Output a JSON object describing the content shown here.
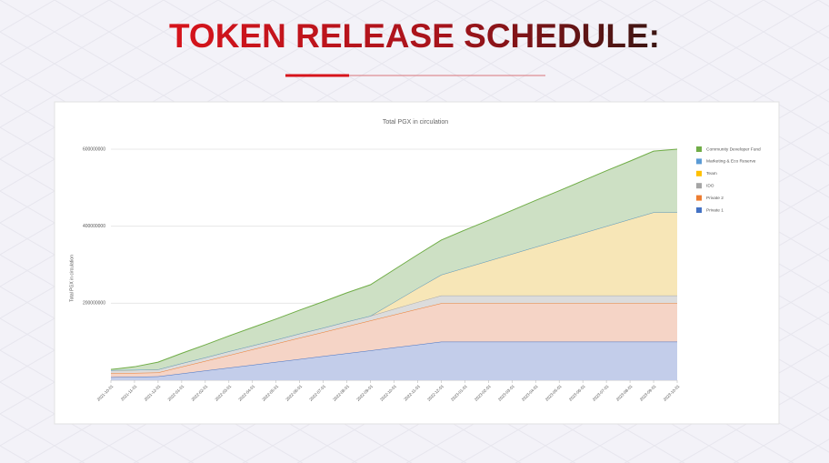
{
  "heading": "TOKEN RELEASE SCHEDULE:",
  "chart_data": {
    "type": "stacked_area",
    "title": "Total PGX in circulation",
    "y_label": "Total PGX in circulation",
    "categories": [
      "2021-10-01",
      "2021-11-01",
      "2021-12-01",
      "2022-01-01",
      "2022-02-01",
      "2022-03-01",
      "2022-04-01",
      "2022-05-01",
      "2022-06-01",
      "2022-07-01",
      "2022-08-01",
      "2022-09-01",
      "2022-10-01",
      "2022-11-01",
      "2022-12-01",
      "2023-01-01",
      "2023-02-01",
      "2023-03-01",
      "2023-04-01",
      "2023-05-01",
      "2023-06-01",
      "2023-07-01",
      "2023-08-01",
      "2023-09-01",
      "2023-10-01"
    ],
    "ylim": [
      0,
      600000000
    ],
    "yticks": [
      200000000,
      400000000,
      600000000
    ],
    "grid": true,
    "legend": "right",
    "series": [
      {
        "name": "Private 1",
        "color": "#4472c4",
        "fill": "#c3cdea",
        "values": [
          8000000,
          9000000,
          10000000,
          17500000,
          25000000,
          32500000,
          40000000,
          47500000,
          55000000,
          62500000,
          70000000,
          77500000,
          85000000,
          92500000,
          100000000,
          100000000,
          100000000,
          100000000,
          100000000,
          100000000,
          100000000,
          100000000,
          100000000,
          100000000,
          100000000
        ]
      },
      {
        "name": "Private 2",
        "color": "#ed7d31",
        "fill": "#f5d4c6",
        "values": [
          10000000,
          10000000,
          10000000,
          17500000,
          25000000,
          32500000,
          40000000,
          47500000,
          55000000,
          62500000,
          70000000,
          77500000,
          85000000,
          92500000,
          100000000,
          100000000,
          100000000,
          100000000,
          100000000,
          100000000,
          100000000,
          100000000,
          100000000,
          100000000,
          100000000
        ]
      },
      {
        "name": "IDO",
        "color": "#a5a5a5",
        "fill": "#dcdcdc",
        "values": [
          8000000,
          8000000,
          8000000,
          9000000,
          9000000,
          10000000,
          10000000,
          10000000,
          11000000,
          11000000,
          12000000,
          12000000,
          15000000,
          18000000,
          20000000,
          20000000,
          20000000,
          20000000,
          20000000,
          20000000,
          20000000,
          20000000,
          20000000,
          20000000,
          20000000
        ]
      },
      {
        "name": "Team",
        "color": "#ffc000",
        "fill": "#f7e6b7",
        "values": [
          0,
          0,
          0,
          0,
          0,
          0,
          0,
          0,
          0,
          0,
          0,
          0,
          18000000,
          36000000,
          54000000,
          72000000,
          90000000,
          108000000,
          126000000,
          144000000,
          162000000,
          180000000,
          198000000,
          216000000,
          216000000
        ]
      },
      {
        "name": "Marketing & Eco Reserve",
        "color": "#5b9bd5",
        "fill": "#cfe0f1",
        "values": [
          0,
          0,
          0,
          0,
          0,
          0,
          0,
          0,
          0,
          0,
          0,
          0,
          0,
          0,
          0,
          0,
          0,
          0,
          0,
          0,
          0,
          0,
          0,
          0,
          0
        ]
      },
      {
        "name": "Community Developer Fund",
        "color": "#70ad47",
        "fill": "#cde0c4",
        "values": [
          2000000,
          8000000,
          19000000,
          26000000,
          33000000,
          40000000,
          47000000,
          54000000,
          61000000,
          68000000,
          75000000,
          81000000,
          84000000,
          87000000,
          90000000,
          98000000,
          105000000,
          113000000,
          121000000,
          128000000,
          136000000,
          144000000,
          151000000,
          159000000,
          164000000
        ]
      }
    ]
  }
}
